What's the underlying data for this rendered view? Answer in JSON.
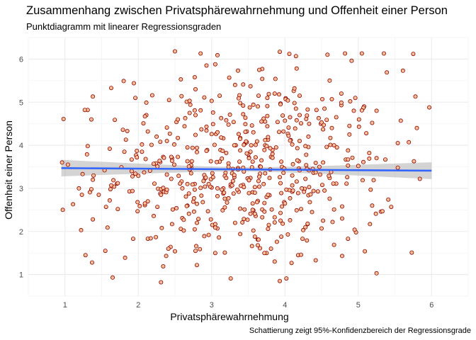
{
  "chart_data": {
    "type": "scatter",
    "title": "Zusammenhang zwischen Privatsphärewahrnehmung und Offenheit einer Person",
    "subtitle": "Punktdiagramm mit linearer Regressionsgraden",
    "xlabel": "Privatsphärewahrnehmung",
    "ylabel": "Offenheit einer Person",
    "caption": "Schattierung zeigt 95%-Konfidenzbereich der Regressionsgrade",
    "xlim": [
      0.5,
      6.5
    ],
    "ylim": [
      0.5,
      6.5
    ],
    "xticks": [
      "1",
      "2",
      "3",
      "4",
      "5",
      "6"
    ],
    "yticks": [
      "1",
      "2",
      "3",
      "4",
      "5",
      "6"
    ],
    "grid": true,
    "point_count": 600,
    "regression": {
      "x": [
        0.95,
        6.0
      ],
      "y": [
        3.47,
        3.41
      ],
      "ci_low": [
        3.25,
        3.3
      ],
      "ci_high": [
        3.69,
        3.52
      ],
      "color": "#3366ff"
    },
    "colors": {
      "point_fill": "#fdbf95",
      "point_stroke": "#8b0000",
      "ci_band": "#999999",
      "grid": "#ebebeb"
    },
    "points_sample": [
      {
        "x": 0.96,
        "y": 3.6
      },
      {
        "x": 1.04,
        "y": 3.55
      },
      {
        "x": 1.24,
        "y": 3.33
      },
      {
        "x": 1.23,
        "y": 2.85
      },
      {
        "x": 1.22,
        "y": 2.03
      },
      {
        "x": 1.28,
        "y": 1.45
      },
      {
        "x": 1.38,
        "y": 5.13
      },
      {
        "x": 1.31,
        "y": 4.82
      },
      {
        "x": 1.36,
        "y": 4.6
      },
      {
        "x": 1.65,
        "y": 0.93
      },
      {
        "x": 1.55,
        "y": 1.55
      },
      {
        "x": 1.46,
        "y": 2.85
      },
      {
        "x": 2.5,
        "y": 6.18
      },
      {
        "x": 2.85,
        "y": 6.13
      },
      {
        "x": 3.08,
        "y": 6.09
      },
      {
        "x": 3.93,
        "y": 6.17
      },
      {
        "x": 4.15,
        "y": 6.07
      },
      {
        "x": 4.58,
        "y": 6.1
      },
      {
        "x": 5.05,
        "y": 6.13
      },
      {
        "x": 5.35,
        "y": 6.13
      },
      {
        "x": 5.75,
        "y": 6.12
      },
      {
        "x": 5.97,
        "y": 4.88
      },
      {
        "x": 5.78,
        "y": 5.13
      },
      {
        "x": 5.58,
        "y": 4.57
      },
      {
        "x": 5.69,
        "y": 4.07
      },
      {
        "x": 5.73,
        "y": 1.51
      },
      {
        "x": 5.45,
        "y": 2.57
      },
      {
        "x": 5.09,
        "y": 1.54
      },
      {
        "x": 2.31,
        "y": 0.82
      },
      {
        "x": 3.26,
        "y": 0.91
      },
      {
        "x": 3.93,
        "y": 0.85
      },
      {
        "x": 4.02,
        "y": 0.91
      }
    ]
  }
}
